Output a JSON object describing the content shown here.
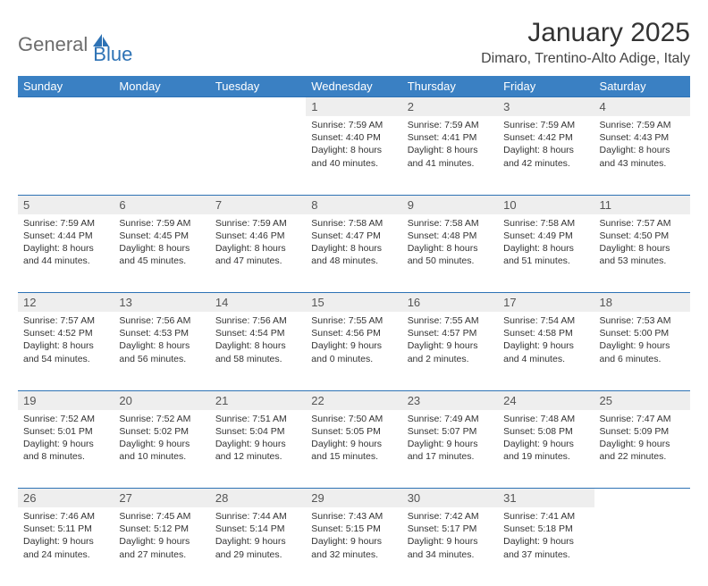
{
  "logo": {
    "text1": "General",
    "text2": "Blue"
  },
  "title": "January 2025",
  "location": "Dimaro, Trentino-Alto Adige, Italy",
  "colors": {
    "header_bg": "#3a80c3",
    "header_text": "#ffffff",
    "daynum_bg": "#eeeeee",
    "rule": "#2d72b5",
    "logo_gray": "#6d6d6d",
    "logo_blue": "#2d72b5"
  },
  "weekdays": [
    "Sunday",
    "Monday",
    "Tuesday",
    "Wednesday",
    "Thursday",
    "Friday",
    "Saturday"
  ],
  "weeks": [
    [
      null,
      null,
      null,
      {
        "n": "1",
        "sr": "7:59 AM",
        "ss": "4:40 PM",
        "dl": "8 hours and 40 minutes."
      },
      {
        "n": "2",
        "sr": "7:59 AM",
        "ss": "4:41 PM",
        "dl": "8 hours and 41 minutes."
      },
      {
        "n": "3",
        "sr": "7:59 AM",
        "ss": "4:42 PM",
        "dl": "8 hours and 42 minutes."
      },
      {
        "n": "4",
        "sr": "7:59 AM",
        "ss": "4:43 PM",
        "dl": "8 hours and 43 minutes."
      }
    ],
    [
      {
        "n": "5",
        "sr": "7:59 AM",
        "ss": "4:44 PM",
        "dl": "8 hours and 44 minutes."
      },
      {
        "n": "6",
        "sr": "7:59 AM",
        "ss": "4:45 PM",
        "dl": "8 hours and 45 minutes."
      },
      {
        "n": "7",
        "sr": "7:59 AM",
        "ss": "4:46 PM",
        "dl": "8 hours and 47 minutes."
      },
      {
        "n": "8",
        "sr": "7:58 AM",
        "ss": "4:47 PM",
        "dl": "8 hours and 48 minutes."
      },
      {
        "n": "9",
        "sr": "7:58 AM",
        "ss": "4:48 PM",
        "dl": "8 hours and 50 minutes."
      },
      {
        "n": "10",
        "sr": "7:58 AM",
        "ss": "4:49 PM",
        "dl": "8 hours and 51 minutes."
      },
      {
        "n": "11",
        "sr": "7:57 AM",
        "ss": "4:50 PM",
        "dl": "8 hours and 53 minutes."
      }
    ],
    [
      {
        "n": "12",
        "sr": "7:57 AM",
        "ss": "4:52 PM",
        "dl": "8 hours and 54 minutes."
      },
      {
        "n": "13",
        "sr": "7:56 AM",
        "ss": "4:53 PM",
        "dl": "8 hours and 56 minutes."
      },
      {
        "n": "14",
        "sr": "7:56 AM",
        "ss": "4:54 PM",
        "dl": "8 hours and 58 minutes."
      },
      {
        "n": "15",
        "sr": "7:55 AM",
        "ss": "4:56 PM",
        "dl": "9 hours and 0 minutes."
      },
      {
        "n": "16",
        "sr": "7:55 AM",
        "ss": "4:57 PM",
        "dl": "9 hours and 2 minutes."
      },
      {
        "n": "17",
        "sr": "7:54 AM",
        "ss": "4:58 PM",
        "dl": "9 hours and 4 minutes."
      },
      {
        "n": "18",
        "sr": "7:53 AM",
        "ss": "5:00 PM",
        "dl": "9 hours and 6 minutes."
      }
    ],
    [
      {
        "n": "19",
        "sr": "7:52 AM",
        "ss": "5:01 PM",
        "dl": "9 hours and 8 minutes."
      },
      {
        "n": "20",
        "sr": "7:52 AM",
        "ss": "5:02 PM",
        "dl": "9 hours and 10 minutes."
      },
      {
        "n": "21",
        "sr": "7:51 AM",
        "ss": "5:04 PM",
        "dl": "9 hours and 12 minutes."
      },
      {
        "n": "22",
        "sr": "7:50 AM",
        "ss": "5:05 PM",
        "dl": "9 hours and 15 minutes."
      },
      {
        "n": "23",
        "sr": "7:49 AM",
        "ss": "5:07 PM",
        "dl": "9 hours and 17 minutes."
      },
      {
        "n": "24",
        "sr": "7:48 AM",
        "ss": "5:08 PM",
        "dl": "9 hours and 19 minutes."
      },
      {
        "n": "25",
        "sr": "7:47 AM",
        "ss": "5:09 PM",
        "dl": "9 hours and 22 minutes."
      }
    ],
    [
      {
        "n": "26",
        "sr": "7:46 AM",
        "ss": "5:11 PM",
        "dl": "9 hours and 24 minutes."
      },
      {
        "n": "27",
        "sr": "7:45 AM",
        "ss": "5:12 PM",
        "dl": "9 hours and 27 minutes."
      },
      {
        "n": "28",
        "sr": "7:44 AM",
        "ss": "5:14 PM",
        "dl": "9 hours and 29 minutes."
      },
      {
        "n": "29",
        "sr": "7:43 AM",
        "ss": "5:15 PM",
        "dl": "9 hours and 32 minutes."
      },
      {
        "n": "30",
        "sr": "7:42 AM",
        "ss": "5:17 PM",
        "dl": "9 hours and 34 minutes."
      },
      {
        "n": "31",
        "sr": "7:41 AM",
        "ss": "5:18 PM",
        "dl": "9 hours and 37 minutes."
      },
      null
    ]
  ],
  "labels": {
    "sunrise": "Sunrise:",
    "sunset": "Sunset:",
    "daylight": "Daylight:"
  }
}
